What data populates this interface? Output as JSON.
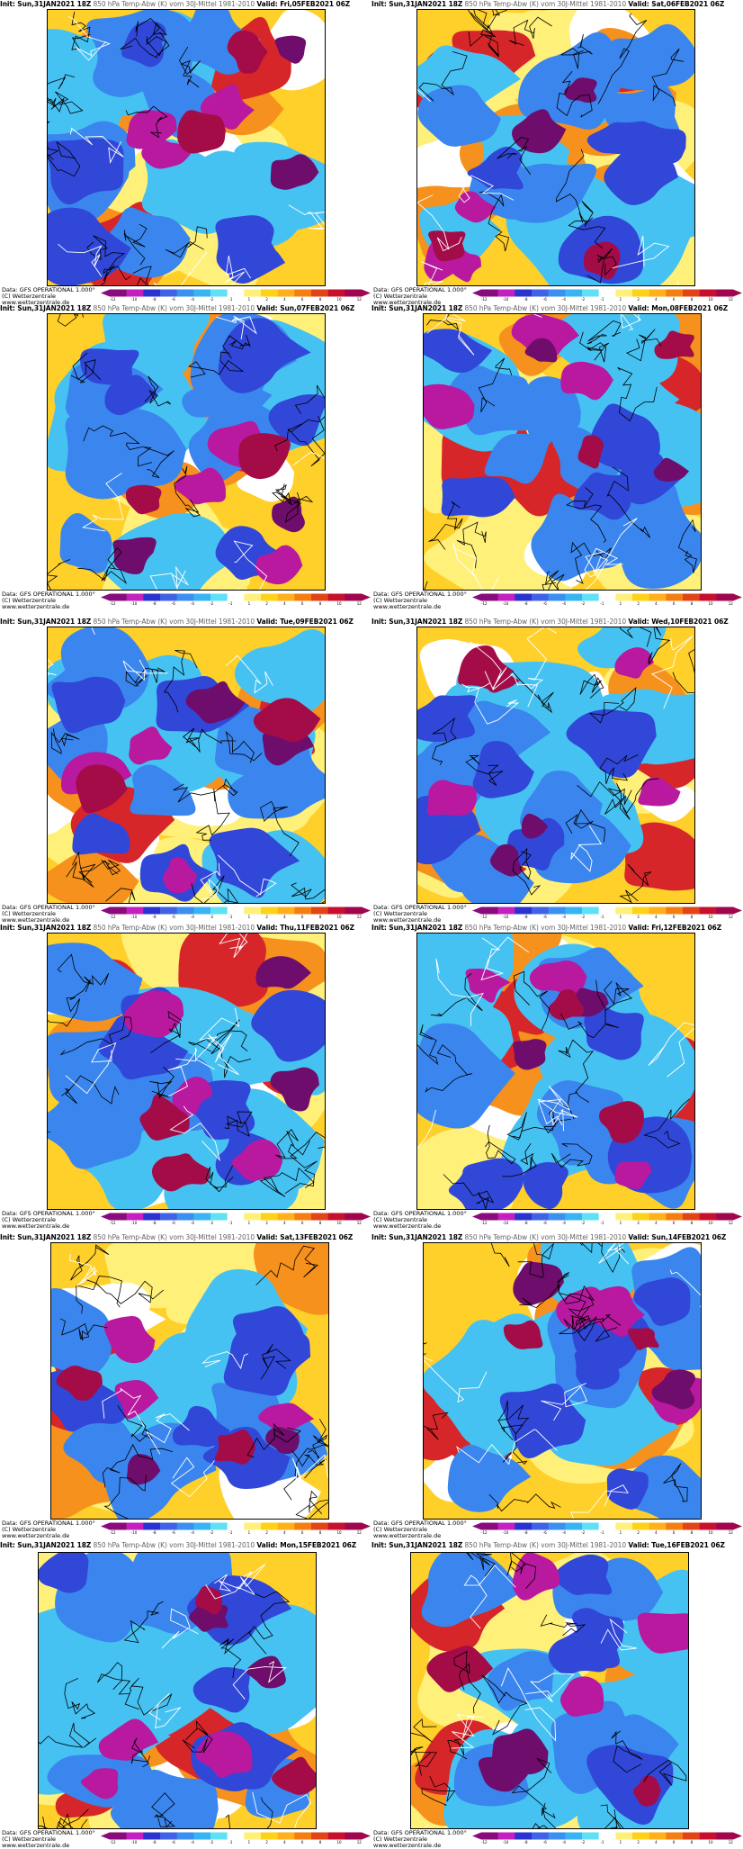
{
  "panels": [
    {
      "init": "Init: Sun,31JAN2021 18Z",
      "level": "850 hPa Temp-Abw (K) vom 30J-Mittel 1981-2010",
      "valid": "Valid: Fri,05FEB2021 06Z"
    },
    {
      "init": "Init: Sun,31JAN2021 18Z",
      "level": "850 hPa Temp-Abw (K) vom 30J-Mittel 1981-2010",
      "valid": "Valid: Sat,06FEB2021 06Z"
    },
    {
      "init": "Init: Sun,31JAN2021 18Z",
      "level": "850 hPa Temp-Abw (K) vom 30J-Mittel 1981-2010",
      "valid": "Valid: Sun,07FEB2021 06Z"
    },
    {
      "init": "Init: Sun,31JAN2021 18Z",
      "level": "850 hPa Temp-Abw (K) vom 30J-Mittel 1981-2010",
      "valid": "Valid: Mon,08FEB2021 06Z"
    },
    {
      "init": "Init: Sun,31JAN2021 18Z",
      "level": "850 hPa Temp-Abw (K) vom 30J-Mittel 1981-2010",
      "valid": "Valid: Tue,09FEB2021 06Z"
    },
    {
      "init": "Init: Sun,31JAN2021 18Z",
      "level": "850 hPa Temp-Abw (K) vom 30J-Mittel 1981-2010",
      "valid": "Valid: Wed,10FEB2021 06Z"
    },
    {
      "init": "Init: Sun,31JAN2021 18Z",
      "level": "850 hPa Temp-Abw (K) vom 30J-Mittel 1981-2010",
      "valid": "Valid: Thu,11FEB2021 06Z"
    },
    {
      "init": "Init: Sun,31JAN2021 18Z",
      "level": "850 hPa Temp-Abw (K) vom 30J-Mittel 1981-2010",
      "valid": "Valid: Fri,12FEB2021 06Z"
    },
    {
      "init": "Init: Sun,31JAN2021 18Z",
      "level": "850 hPa Temp-Abw (K) vom 30J-Mittel 1981-2010",
      "valid": "Valid: Sat,13FEB2021 06Z"
    },
    {
      "init": "Init: Sun,31JAN2021 18Z",
      "level": "850 hPa Temp-Abw (K) vom 30J-Mittel 1981-2010",
      "valid": "Valid: Sun,14FEB2021 06Z"
    },
    {
      "init": "Init: Sun,31JAN2021 18Z",
      "level": "850 hPa Temp-Abw (K) vom 30J-Mittel 1981-2010",
      "valid": "Valid: Mon,15FEB2021 06Z"
    },
    {
      "init": "Init: Sun,31JAN2021 18Z",
      "level": "850 hPa Temp-Abw (K) vom 30J-Mittel 1981-2010",
      "valid": "Valid: Tue,16FEB2021 06Z"
    }
  ],
  "credit": {
    "data": "Data: GFS OPERATIONAL 1.000°",
    "copyright": "(C) Wetterzentrale",
    "url": "www.wetterzentrale.de"
  },
  "legend": {
    "ticks": [
      "-12",
      "-10",
      "-8",
      "-6",
      "-4",
      "-2",
      "-1",
      "1",
      "2",
      "4",
      "6",
      "8",
      "10",
      "12"
    ],
    "colors": [
      "#8a0b7c",
      "#c41fc0",
      "#2a33cf",
      "#3f62e6",
      "#3b8ff0",
      "#38b4f4",
      "#5fe0f4",
      "#ffffff",
      "#fff07a",
      "#ffd21a",
      "#ffb01a",
      "#f57e12",
      "#e14417",
      "#c8102e",
      "#a0064d"
    ]
  },
  "map_colors": {
    "deep_cold": "#6e0d6b",
    "cold_magenta": "#b8199f",
    "cold_blue": "#3047d8",
    "cool_blue": "#3a86ee",
    "light_blue": "#46c2f2",
    "neutral": "#ffffff",
    "warm_yellow": "#fff07a",
    "warm_gold": "#ffcf2a",
    "warm_orange": "#f5911c",
    "hot_red": "#d7262a",
    "hot_crimson": "#a40c48"
  }
}
